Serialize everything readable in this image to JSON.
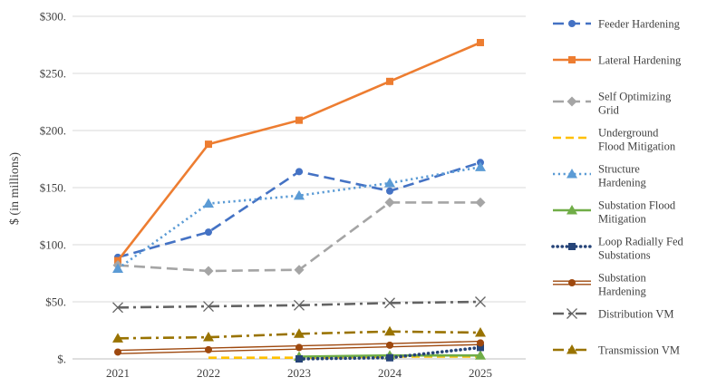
{
  "chart_data": {
    "type": "line",
    "ylabel": "$ (in millions)",
    "xlabel": "",
    "categories": [
      "2021",
      "2022",
      "2023",
      "2024",
      "2025"
    ],
    "ylim": [
      0,
      300
    ],
    "yticks": [
      {
        "value": 0,
        "label": "$."
      },
      {
        "value": 50,
        "label": "$50."
      },
      {
        "value": 100,
        "label": "$100."
      },
      {
        "value": 150,
        "label": "$150."
      },
      {
        "value": 200,
        "label": "$200."
      },
      {
        "value": 250,
        "label": "$250."
      },
      {
        "value": 300,
        "label": "$300."
      }
    ],
    "grid": "horizontal",
    "legend_position": "right",
    "series": [
      {
        "name": "Feeder Hardening",
        "legend_lines": [
          "Feeder Hardening"
        ],
        "color": "#4472C4",
        "dash": "dashed-long",
        "marker": "circle",
        "values": [
          89,
          111,
          164,
          147,
          172
        ]
      },
      {
        "name": "Lateral Hardening",
        "legend_lines": [
          "Lateral Hardening"
        ],
        "color": "#ED7D31",
        "dash": "solid",
        "marker": "square",
        "values": [
          86,
          188,
          209,
          243,
          277
        ]
      },
      {
        "name": "Self Optimizing Grid",
        "legend_lines": [
          "Self Optimizing",
          "Grid"
        ],
        "color": "#A5A5A5",
        "dash": "dashed-long",
        "marker": "diamond",
        "values": [
          82,
          77,
          78,
          137,
          137
        ]
      },
      {
        "name": "Underground Flood Mitigation",
        "legend_lines": [
          "Underground",
          "Flood Mitigation"
        ],
        "color": "#FFC000",
        "dash": "dashed",
        "marker": "none",
        "values": [
          null,
          1,
          1,
          2,
          2
        ]
      },
      {
        "name": "Structure Hardening",
        "legend_lines": [
          "Structure",
          "Hardening"
        ],
        "color": "#5B9BD5",
        "dash": "dotted",
        "marker": "triangle",
        "values": [
          79,
          136,
          143,
          154,
          168
        ]
      },
      {
        "name": "Substation Flood Mitigation",
        "legend_lines": [
          "Substation Flood",
          "Mitigation"
        ],
        "color": "#70AD47",
        "dash": "solid",
        "marker": "triangle",
        "values": [
          null,
          null,
          2,
          3,
          3
        ]
      },
      {
        "name": "Loop Radially Fed Substations",
        "legend_lines": [
          "Loop Radially Fed",
          "Substations"
        ],
        "color": "#264478",
        "dash": "dotted-round",
        "marker": "square",
        "values": [
          null,
          null,
          0,
          1,
          10
        ]
      },
      {
        "name": "Substation Hardening",
        "legend_lines": [
          "Substation",
          "Hardening"
        ],
        "color": "#9E480E",
        "dash": "double",
        "marker": "circle",
        "values": [
          6,
          8,
          10,
          12,
          14
        ]
      },
      {
        "name": "Distribution VM",
        "legend_lines": [
          "Distribution VM"
        ],
        "color": "#636363",
        "dash": "dashdot",
        "marker": "x",
        "values": [
          45,
          46,
          47,
          49,
          50
        ]
      },
      {
        "name": "Transmission VM",
        "legend_lines": [
          "Transmission VM"
        ],
        "color": "#997300",
        "dash": "dashdot",
        "marker": "triangle",
        "values": [
          18,
          19,
          22,
          24,
          23
        ]
      }
    ]
  }
}
